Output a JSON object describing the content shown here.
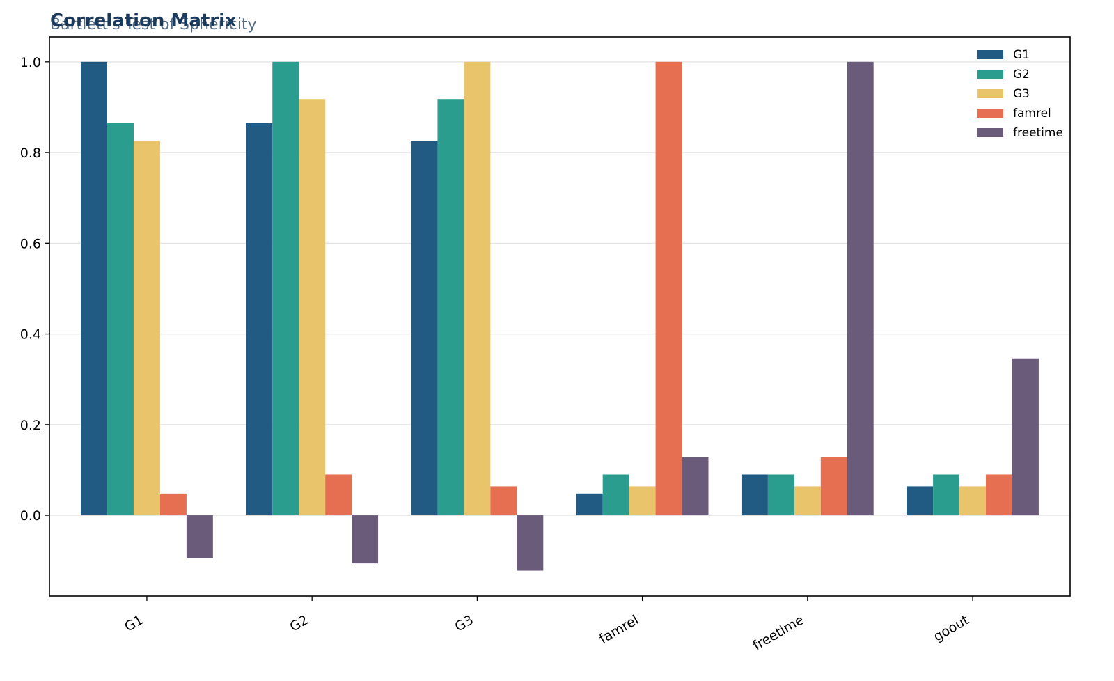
{
  "chart_data": {
    "type": "bar",
    "title": "Correlation Matrix",
    "subtitle": "Bartlett's Test of Sphericity",
    "xlabel": "",
    "ylabel": "",
    "categories": [
      "G1",
      "G2",
      "G3",
      "famrel",
      "freetime",
      "goout"
    ],
    "series": [
      {
        "name": "G1",
        "color": "#215A82",
        "values": [
          1.0,
          0.865,
          0.826,
          0.048,
          0.09,
          0.064
        ]
      },
      {
        "name": "G2",
        "color": "#2A9D8F",
        "values": [
          0.865,
          1.0,
          0.918,
          0.09,
          0.09,
          0.09
        ]
      },
      {
        "name": "G3",
        "color": "#E9C46A",
        "values": [
          0.826,
          0.918,
          1.0,
          0.064,
          0.064,
          0.064
        ]
      },
      {
        "name": "famrel",
        "color": "#E76F51",
        "values": [
          0.048,
          0.09,
          0.064,
          1.0,
          0.128,
          0.09
        ]
      },
      {
        "name": "freetime",
        "color": "#6B5B7B",
        "values": [
          -0.094,
          -0.106,
          -0.122,
          0.128,
          1.0,
          0.346
        ]
      }
    ],
    "ylim": [
      -0.178,
      1.055
    ],
    "yticks": [
      0.0,
      0.2,
      0.4,
      0.6,
      0.8,
      1.0
    ],
    "grid": true,
    "legend_position": "top-right",
    "title_color": "#1B3A5C"
  }
}
